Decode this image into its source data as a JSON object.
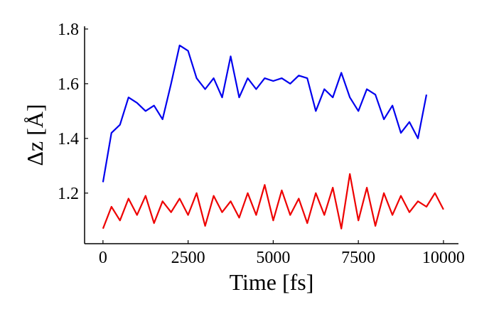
{
  "chart_data": {
    "type": "line",
    "xlabel": "Time [fs]",
    "ylabel": "Δz [Å]",
    "x": [
      0,
      250,
      500,
      750,
      1000,
      1250,
      1500,
      1750,
      2000,
      2250,
      2500,
      2750,
      3000,
      3250,
      3500,
      3750,
      4000,
      4250,
      4500,
      4750,
      5000,
      5250,
      5500,
      5750,
      6000,
      6250,
      6500,
      6750,
      7000,
      7250,
      7500,
      7750,
      8000,
      8250,
      8500,
      8750,
      9000,
      9250,
      9500,
      9750,
      10000
    ],
    "series": [
      {
        "color": "#0000ee",
        "values": [
          1.24,
          1.42,
          1.45,
          1.55,
          1.53,
          1.5,
          1.52,
          1.47,
          1.6,
          1.74,
          1.72,
          1.62,
          1.58,
          1.62,
          1.55,
          1.7,
          1.55,
          1.62,
          1.58,
          1.62,
          1.61,
          1.62,
          1.6,
          1.63,
          1.62,
          1.5,
          1.58,
          1.55,
          1.64,
          1.55,
          1.5,
          1.58,
          1.56,
          1.47,
          1.52,
          1.42,
          1.46,
          1.4,
          1.56,
          null,
          null
        ]
      },
      {
        "color": "#ee0000",
        "values": [
          1.07,
          1.15,
          1.1,
          1.18,
          1.12,
          1.19,
          1.09,
          1.17,
          1.13,
          1.18,
          1.12,
          1.2,
          1.08,
          1.19,
          1.13,
          1.17,
          1.11,
          1.2,
          1.12,
          1.23,
          1.1,
          1.21,
          1.12,
          1.18,
          1.09,
          1.2,
          1.12,
          1.22,
          1.07,
          1.27,
          1.1,
          1.22,
          1.08,
          1.2,
          1.12,
          1.19,
          1.13,
          1.17,
          1.15,
          1.2,
          1.14
        ]
      }
    ],
    "xlim": [
      -540,
      10440
    ],
    "ylim": [
      1.015,
      1.81
    ],
    "xticks": [
      0,
      2500,
      5000,
      7500,
      10000
    ],
    "yticks": [
      1.2,
      1.4,
      1.6,
      1.8
    ]
  }
}
